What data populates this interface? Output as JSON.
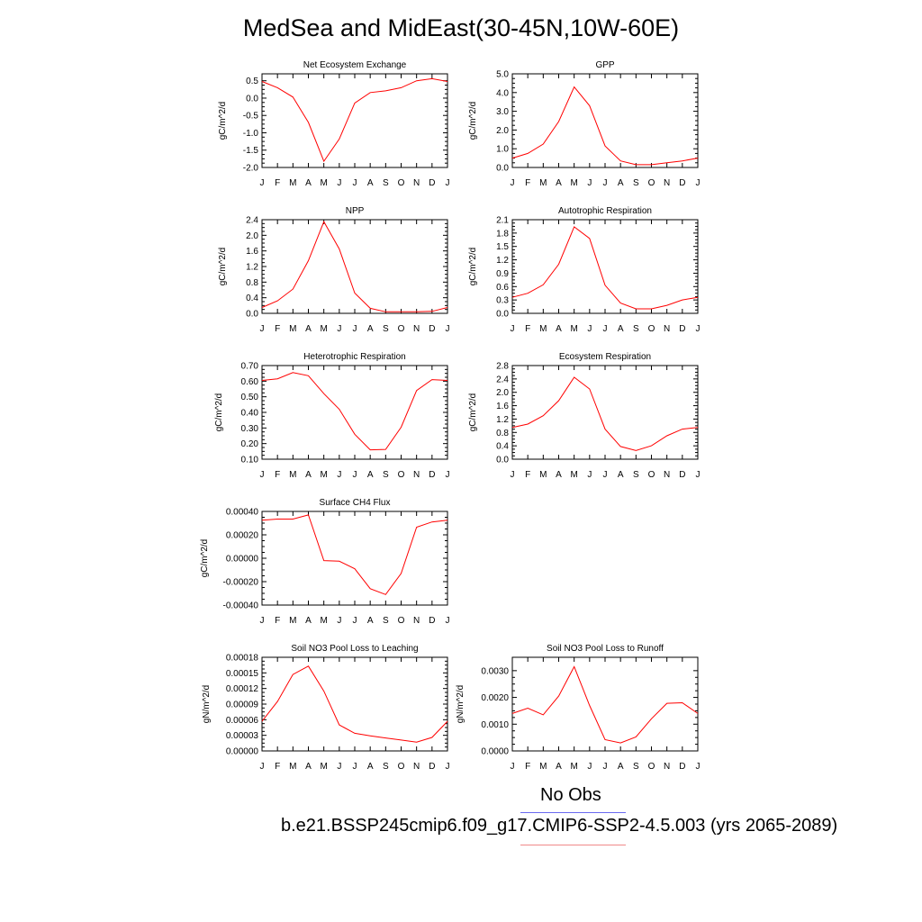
{
  "figure": {
    "title": "MedSea and MidEast(30-45N,10W-60E)",
    "legend_obs_label": "No Obs",
    "legend_run_label": "b.e21.BSSP245cmip6.f09_g17.CMIP6-SSP2-4.5.003 (yrs 2065-2089)",
    "colors": {
      "model": "#ff0000",
      "obs": "#6a6af0",
      "run_line": "#f08a8a"
    }
  },
  "chart_data": [
    {
      "type": "line",
      "title": "Net Ecosystem Exchange",
      "ylabel": "gC/m^2/d",
      "categories": [
        "J",
        "F",
        "M",
        "A",
        "M",
        "J",
        "J",
        "A",
        "S",
        "O",
        "N",
        "D",
        "J"
      ],
      "values": [
        0.48,
        0.3,
        0.03,
        -0.7,
        -1.82,
        -1.18,
        -0.14,
        0.16,
        0.21,
        0.3,
        0.5,
        0.56,
        0.48
      ],
      "ylim": [
        -2.0,
        0.7
      ],
      "yticks": [
        "0.5",
        "0.0",
        "-0.5",
        "-1.0",
        "-1.5",
        "-2.0"
      ],
      "ytick_values": [
        0.5,
        0.0,
        -0.5,
        -1.0,
        -1.5,
        -2.0
      ]
    },
    {
      "type": "line",
      "title": "GPP",
      "ylabel": "gC/m^2/d",
      "categories": [
        "J",
        "F",
        "M",
        "A",
        "M",
        "J",
        "J",
        "A",
        "S",
        "O",
        "N",
        "D",
        "J"
      ],
      "values": [
        0.5,
        0.75,
        1.25,
        2.45,
        4.3,
        3.3,
        1.15,
        0.35,
        0.15,
        0.15,
        0.25,
        0.35,
        0.5
      ],
      "ylim": [
        0.0,
        5.0
      ],
      "yticks": [
        "5.0",
        "4.0",
        "3.0",
        "2.0",
        "1.0",
        "0.0"
      ],
      "ytick_values": [
        5.0,
        4.0,
        3.0,
        2.0,
        1.0,
        0.0
      ]
    },
    {
      "type": "line",
      "title": "NPP",
      "ylabel": "gC/m^2/d",
      "categories": [
        "J",
        "F",
        "M",
        "A",
        "M",
        "J",
        "J",
        "A",
        "S",
        "O",
        "N",
        "D",
        "J"
      ],
      "values": [
        0.15,
        0.32,
        0.62,
        1.35,
        2.35,
        1.65,
        0.52,
        0.13,
        0.04,
        0.04,
        0.04,
        0.05,
        0.15
      ],
      "ylim": [
        0.0,
        2.4
      ],
      "yticks": [
        "2.4",
        "2.0",
        "1.6",
        "1.2",
        "0.8",
        "0.4",
        "0.0"
      ],
      "ytick_values": [
        2.4,
        2.0,
        1.6,
        1.2,
        0.8,
        0.4,
        0.0
      ]
    },
    {
      "type": "line",
      "title": "Autotrophic Respiration",
      "ylabel": "gC/m^2/d",
      "categories": [
        "J",
        "F",
        "M",
        "A",
        "M",
        "J",
        "J",
        "A",
        "S",
        "O",
        "N",
        "D",
        "J"
      ],
      "values": [
        0.36,
        0.45,
        0.64,
        1.1,
        1.94,
        1.68,
        0.63,
        0.23,
        0.1,
        0.1,
        0.18,
        0.3,
        0.36
      ],
      "ylim": [
        0.0,
        2.1
      ],
      "yticks": [
        "2.1",
        "1.8",
        "1.5",
        "1.2",
        "0.9",
        "0.6",
        "0.3",
        "0.0"
      ],
      "ytick_values": [
        2.1,
        1.8,
        1.5,
        1.2,
        0.9,
        0.6,
        0.3,
        0.0
      ]
    },
    {
      "type": "line",
      "title": "Heterotrophic Respiration",
      "ylabel": "gC/m^2/d",
      "categories": [
        "J",
        "F",
        "M",
        "A",
        "M",
        "J",
        "J",
        "A",
        "S",
        "O",
        "N",
        "D",
        "J"
      ],
      "values": [
        0.605,
        0.615,
        0.655,
        0.635,
        0.52,
        0.42,
        0.26,
        0.16,
        0.163,
        0.305,
        0.54,
        0.61,
        0.605
      ],
      "ylim": [
        0.1,
        0.7
      ],
      "yticks": [
        "0.70",
        "0.60",
        "0.50",
        "0.40",
        "0.30",
        "0.20",
        "0.10"
      ],
      "ytick_values": [
        0.7,
        0.6,
        0.5,
        0.4,
        0.3,
        0.2,
        0.1
      ]
    },
    {
      "type": "line",
      "title": "Ecosystem Respiration",
      "ylabel": "gC/m^2/d",
      "categories": [
        "J",
        "F",
        "M",
        "A",
        "M",
        "J",
        "J",
        "A",
        "S",
        "O",
        "N",
        "D",
        "J"
      ],
      "values": [
        0.95,
        1.05,
        1.3,
        1.75,
        2.45,
        2.1,
        0.9,
        0.38,
        0.26,
        0.4,
        0.7,
        0.9,
        0.95
      ],
      "ylim": [
        0.0,
        2.8
      ],
      "yticks": [
        "2.8",
        "2.4",
        "2.0",
        "1.6",
        "1.2",
        "0.8",
        "0.4",
        "0.0"
      ],
      "ytick_values": [
        2.8,
        2.4,
        2.0,
        1.6,
        1.2,
        0.8,
        0.4,
        0.0
      ]
    },
    {
      "type": "line",
      "title": "Surface CH4 Flux",
      "ylabel": "gC/m^2/d",
      "categories": [
        "J",
        "F",
        "M",
        "A",
        "M",
        "J",
        "J",
        "A",
        "S",
        "O",
        "N",
        "D",
        "J"
      ],
      "values": [
        0.000325,
        0.000335,
        0.000335,
        0.00037,
        -2e-05,
        -2.5e-05,
        -9e-05,
        -0.00026,
        -0.00031,
        -0.00013,
        0.000265,
        0.00031,
        0.000325
      ],
      "ylim": [
        -0.0004,
        0.0004
      ],
      "yticks": [
        "0.00040",
        "0.00020",
        "0.00000",
        "-0.00020",
        "-0.00040"
      ],
      "ytick_values": [
        0.0004,
        0.0002,
        0.0,
        -0.0002,
        -0.0004
      ]
    },
    {
      "type": "line",
      "title": "Soil NO3 Pool Loss to Leaching",
      "ylabel": "gN/m^2/d",
      "categories": [
        "J",
        "F",
        "M",
        "A",
        "M",
        "J",
        "J",
        "A",
        "S",
        "O",
        "N",
        "D",
        "J"
      ],
      "values": [
        5.7e-05,
        9.5e-05,
        0.000147,
        0.000163,
        0.000115,
        5e-05,
        3.4e-05,
        2.9e-05,
        2.5e-05,
        2.1e-05,
        1.7e-05,
        2.6e-05,
        5.7e-05
      ],
      "ylim": [
        0.0,
        0.00018
      ],
      "yticks": [
        "0.00018",
        "0.00015",
        "0.00012",
        "0.00009",
        "0.00006",
        "0.00003",
        "0.00000"
      ],
      "ytick_values": [
        0.00018,
        0.00015,
        0.00012,
        9e-05,
        6e-05,
        3e-05,
        0.0
      ]
    },
    {
      "type": "line",
      "title": "Soil NO3 Pool Loss to Runoff",
      "ylabel": "gN/m^2/d",
      "categories": [
        "J",
        "F",
        "M",
        "A",
        "M",
        "J",
        "J",
        "A",
        "S",
        "O",
        "N",
        "D",
        "J"
      ],
      "values": [
        0.0014,
        0.0016,
        0.00135,
        0.00205,
        0.00315,
        0.0017,
        0.00042,
        0.0003,
        0.00052,
        0.0012,
        0.00178,
        0.0018,
        0.0014
      ],
      "ylim": [
        0.0,
        0.0035
      ],
      "yticks": [
        "0.0030",
        "0.0020",
        "0.0010",
        "0.0000"
      ],
      "ytick_values": [
        0.003,
        0.002,
        0.001,
        0.0
      ]
    }
  ]
}
